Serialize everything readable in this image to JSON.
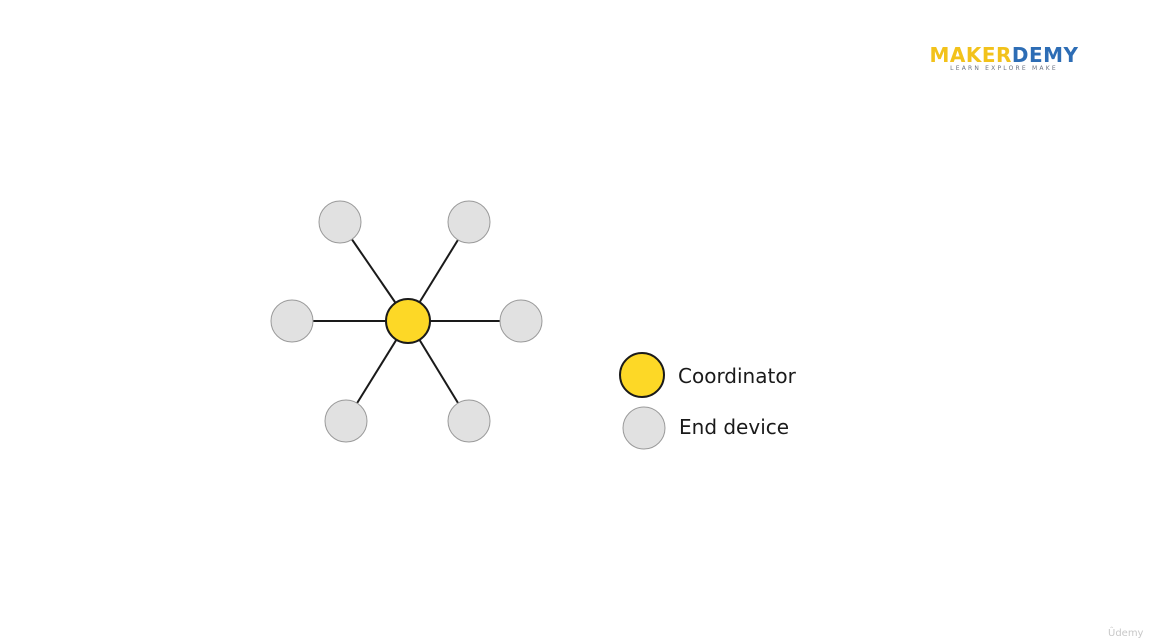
{
  "logo": {
    "parts": [
      {
        "text": "MAKER",
        "color": "#f2c21b"
      },
      {
        "text": "DEMY",
        "color": "#2d6db5"
      }
    ],
    "tagline": "LEARN EXPLORE MAKE"
  },
  "diagram": {
    "colors": {
      "coordinator_fill": "#fdd826",
      "end_device_fill": "#e1e1e1",
      "coordinator_stroke": "#1a1a1a",
      "end_device_stroke": "#9a9a9a",
      "link": "#1a1a1a"
    },
    "coordinator": {
      "role": "coordinator"
    },
    "end_devices": [
      {
        "role": "end-device",
        "position": "top-left"
      },
      {
        "role": "end-device",
        "position": "top-right"
      },
      {
        "role": "end-device",
        "position": "left"
      },
      {
        "role": "end-device",
        "position": "right"
      },
      {
        "role": "end-device",
        "position": "bottom-left"
      },
      {
        "role": "end-device",
        "position": "bottom-right"
      }
    ]
  },
  "legend": {
    "items": [
      {
        "label": "Coordinator",
        "role": "coordinator"
      },
      {
        "label": "End device",
        "role": "end-device"
      }
    ]
  },
  "watermark": "Ûdemy"
}
